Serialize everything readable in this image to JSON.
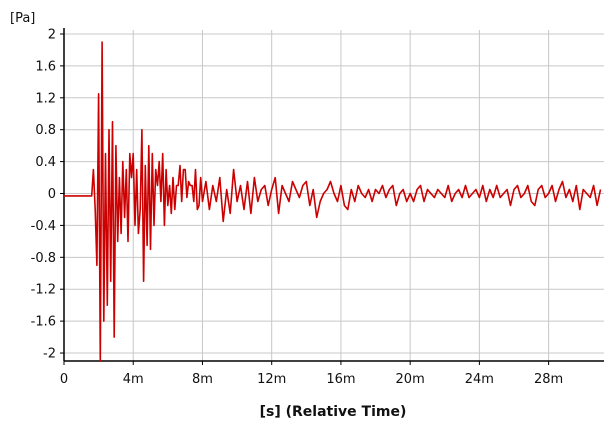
{
  "chart_data": {
    "type": "line",
    "title": "",
    "ylabel": "[Pa]",
    "xlabel": "[s] (Relative Time)",
    "ylim": [
      -2.1,
      2.05
    ],
    "xlim": [
      0,
      0.0312
    ],
    "grid": true,
    "legend": "none",
    "y_ticks": [
      2,
      1.6,
      1.2,
      0.8,
      0.4,
      0,
      -0.4,
      -0.8,
      -1.2,
      -1.6,
      -2
    ],
    "y_tick_labels": [
      "2",
      "1.6",
      "1.2",
      "0.8",
      "0.4",
      "0",
      "-0.4",
      "-0.8",
      "-1.2",
      "-1.6",
      "-2"
    ],
    "x_ticks": [
      0,
      0.004,
      0.008,
      0.012,
      0.016,
      0.02,
      0.024,
      0.028
    ],
    "x_tick_labels": [
      "0",
      "4m",
      "8m",
      "12m",
      "16m",
      "20m",
      "24m",
      "28m"
    ],
    "colors": {
      "series": "#cc0000",
      "grid": "#c8c8c8",
      "axis": "#000000",
      "text": "#111111"
    },
    "series": [
      {
        "x": [
          0,
          0.0016,
          0.0017,
          0.0018,
          0.0019,
          0.002,
          0.0021,
          0.0022,
          0.0023,
          0.0024,
          0.0025,
          0.0026,
          0.0027,
          0.0028,
          0.0029,
          0.003,
          0.0031,
          0.0032,
          0.0033,
          0.0034,
          0.0035,
          0.0036,
          0.0037,
          0.0038,
          0.0039,
          0.004,
          0.0041,
          0.0042,
          0.0043,
          0.0044,
          0.0045,
          0.0046,
          0.0047,
          0.0048,
          0.0049,
          0.005,
          0.0051,
          0.0052,
          0.0053,
          0.0054,
          0.0055,
          0.0056,
          0.0057,
          0.0058,
          0.0059,
          0.006,
          0.0061,
          0.0062,
          0.0063,
          0.0064,
          0.0065,
          0.0066,
          0.0067,
          0.0068,
          0.0069,
          0.007,
          0.0071,
          0.0072,
          0.0073,
          0.0074,
          0.0075,
          0.0076,
          0.0077,
          0.0078,
          0.0079,
          0.008,
          0.0082,
          0.0084,
          0.0086,
          0.0088,
          0.009,
          0.0092,
          0.0094,
          0.0096,
          0.0098,
          0.01,
          0.0102,
          0.0104,
          0.0106,
          0.0108,
          0.011,
          0.0112,
          0.0114,
          0.0116,
          0.0118,
          0.012,
          0.0122,
          0.0124,
          0.0126,
          0.0128,
          0.013,
          0.0132,
          0.0134,
          0.0136,
          0.0138,
          0.014,
          0.0142,
          0.0144,
          0.0146,
          0.0148,
          0.015,
          0.0152,
          0.0154,
          0.0156,
          0.0158,
          0.016,
          0.0162,
          0.0164,
          0.0166,
          0.0168,
          0.017,
          0.0172,
          0.0174,
          0.0176,
          0.0178,
          0.018,
          0.0182,
          0.0184,
          0.0186,
          0.0188,
          0.019,
          0.0192,
          0.0194,
          0.0196,
          0.0198,
          0.02,
          0.0202,
          0.0204,
          0.0206,
          0.0208,
          0.021,
          0.0212,
          0.0214,
          0.0216,
          0.0218,
          0.022,
          0.0222,
          0.0224,
          0.0226,
          0.0228,
          0.023,
          0.0232,
          0.0234,
          0.0236,
          0.0238,
          0.024,
          0.0242,
          0.0244,
          0.0246,
          0.0248,
          0.025,
          0.0252,
          0.0254,
          0.0256,
          0.0258,
          0.026,
          0.0262,
          0.0264,
          0.0266,
          0.0268,
          0.027,
          0.0272,
          0.0274,
          0.0276,
          0.0278,
          0.028,
          0.0282,
          0.0284,
          0.0286,
          0.0288,
          0.029,
          0.0292,
          0.0294,
          0.0296,
          0.0298,
          0.03,
          0.0302,
          0.0304,
          0.0306,
          0.0308,
          0.031
        ],
        "y": [
          -0.03,
          -0.03,
          0.3,
          -0.2,
          -0.9,
          1.25,
          -2.1,
          1.9,
          -1.6,
          0.5,
          -1.4,
          0.8,
          -1.1,
          0.9,
          -1.8,
          0.6,
          -0.6,
          0.2,
          -0.5,
          0.4,
          -0.3,
          0.3,
          -0.6,
          0.5,
          0.2,
          0.5,
          -0.4,
          0.3,
          -0.5,
          -0.2,
          0.8,
          -1.1,
          0.35,
          -0.65,
          0.6,
          -0.7,
          0.5,
          -0.4,
          0.3,
          0.1,
          0.4,
          -0.1,
          0.5,
          -0.4,
          0.3,
          -0.15,
          0.1,
          -0.25,
          0.2,
          -0.2,
          0.1,
          0.1,
          0.35,
          -0.1,
          0.3,
          0.3,
          -0.05,
          0.15,
          0.1,
          0.1,
          -0.1,
          0.3,
          -0.2,
          -0.15,
          0.2,
          -0.1,
          0.15,
          -0.2,
          0.1,
          -0.1,
          0.2,
          -0.35,
          0.05,
          -0.25,
          0.3,
          -0.1,
          0.1,
          -0.2,
          0.15,
          -0.25,
          0.2,
          -0.1,
          0.05,
          0.1,
          -0.15,
          0.05,
          0.2,
          -0.25,
          0.1,
          0.0,
          -0.1,
          0.15,
          0.05,
          -0.05,
          0.1,
          0.15,
          -0.15,
          0.05,
          -0.3,
          -0.1,
          0.0,
          0.05,
          0.15,
          0.0,
          -0.1,
          0.1,
          -0.15,
          -0.2,
          0.05,
          -0.1,
          0.1,
          0.0,
          -0.05,
          0.05,
          -0.1,
          0.05,
          0.0,
          0.1,
          -0.05,
          0.05,
          0.1,
          -0.15,
          0.0,
          0.05,
          -0.1,
          0.0,
          -0.1,
          0.05,
          0.1,
          -0.1,
          0.05,
          0.0,
          -0.05,
          0.05,
          0.0,
          -0.05,
          0.1,
          -0.1,
          0.0,
          0.05,
          -0.05,
          0.1,
          -0.05,
          0.0,
          0.05,
          -0.05,
          0.1,
          -0.1,
          0.05,
          -0.05,
          0.1,
          -0.05,
          0.0,
          0.05,
          -0.15,
          0.05,
          0.1,
          -0.05,
          0.0,
          0.1,
          -0.1,
          -0.15,
          0.05,
          0.1,
          -0.05,
          0.0,
          0.1,
          -0.1,
          0.05,
          0.15,
          -0.05,
          0.05,
          -0.1,
          0.1,
          -0.2,
          0.05,
          0.0,
          -0.05,
          0.1,
          -0.15,
          0.05
        ]
      }
    ]
  }
}
